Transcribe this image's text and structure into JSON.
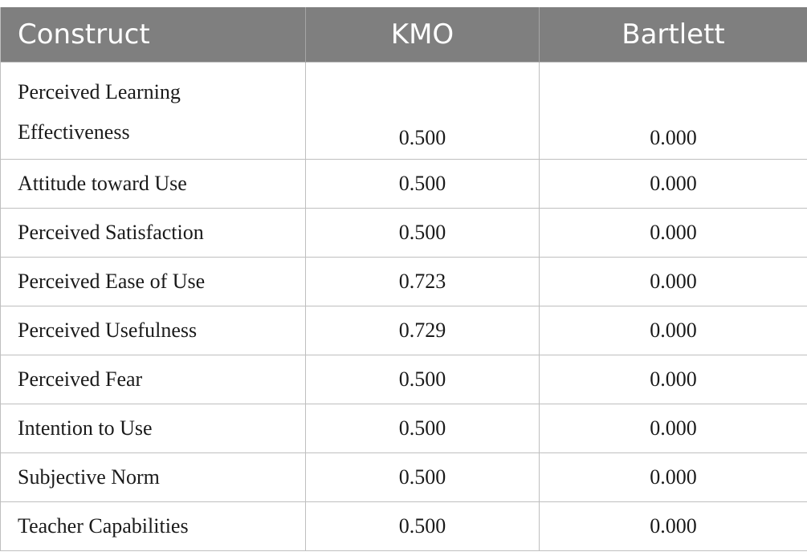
{
  "table": {
    "headers": [
      "Construct",
      "KMO",
      "Bartlett"
    ],
    "rows": [
      {
        "construct_line1": "Perceived Learning",
        "construct_line2": "Effectiveness",
        "kmo": "0.500",
        "bartlett": "0.000"
      },
      {
        "construct": "Attitude toward Use",
        "kmo": "0.500",
        "bartlett": "0.000"
      },
      {
        "construct": "Perceived Satisfaction",
        "kmo": "0.500",
        "bartlett": "0.000"
      },
      {
        "construct": "Perceived Ease of Use",
        "kmo": "0.723",
        "bartlett": "0.000"
      },
      {
        "construct": "Perceived Usefulness",
        "kmo": "0.729",
        "bartlett": "0.000"
      },
      {
        "construct": "Perceived Fear",
        "kmo": "0.500",
        "bartlett": "0.000"
      },
      {
        "construct": "Intention to Use",
        "kmo": "0.500",
        "bartlett": "0.000"
      },
      {
        "construct": "Subjective Norm",
        "kmo": "0.500",
        "bartlett": "0.000"
      },
      {
        "construct": "Teacher Capabilities",
        "kmo": "0.500",
        "bartlett": "0.000"
      }
    ]
  }
}
